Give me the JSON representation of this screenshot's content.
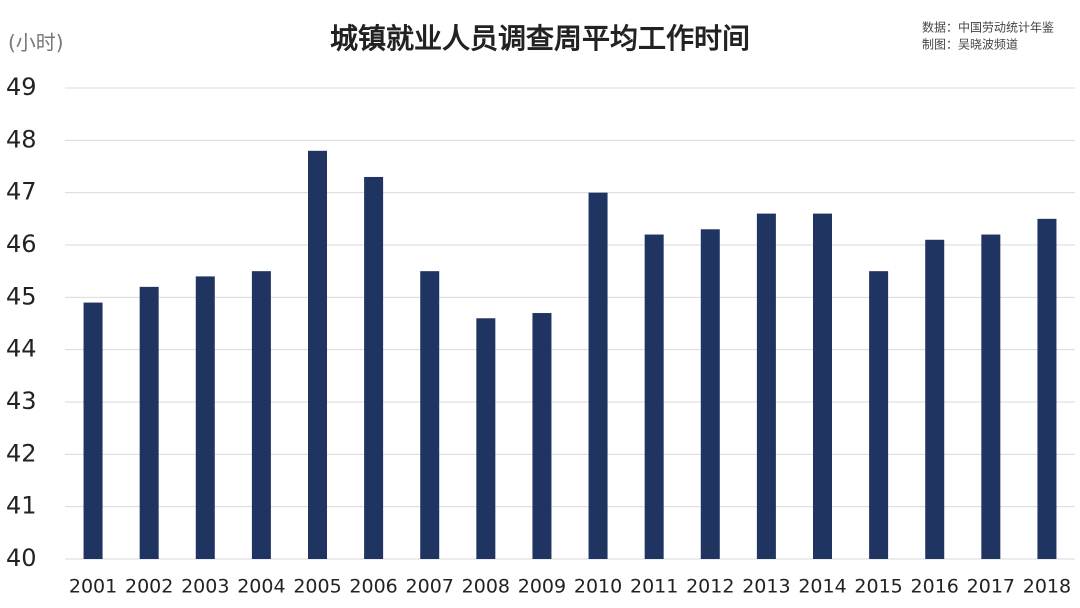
{
  "chart_data": {
    "type": "bar",
    "title": "城镇就业人员调查周平均工作时间",
    "y_label": "(小时)",
    "source": [
      "数据：中国劳动统计年鉴",
      "制图：吴晓波频道"
    ],
    "categories": [
      "2001",
      "2002",
      "2003",
      "2004",
      "2005",
      "2006",
      "2007",
      "2008",
      "2009",
      "2010",
      "2011",
      "2012",
      "2013",
      "2014",
      "2015",
      "2016",
      "2017",
      "2018"
    ],
    "values": [
      44.9,
      45.2,
      45.4,
      45.5,
      47.8,
      47.3,
      45.5,
      44.6,
      44.7,
      47.0,
      46.2,
      46.3,
      46.6,
      46.6,
      45.5,
      46.1,
      46.2,
      46.5
    ],
    "color": "#1f3461",
    "ylim": [
      40,
      49
    ],
    "yticks": [
      40,
      41,
      42,
      43,
      44,
      45,
      46,
      47,
      48,
      49
    ],
    "grid": true
  }
}
